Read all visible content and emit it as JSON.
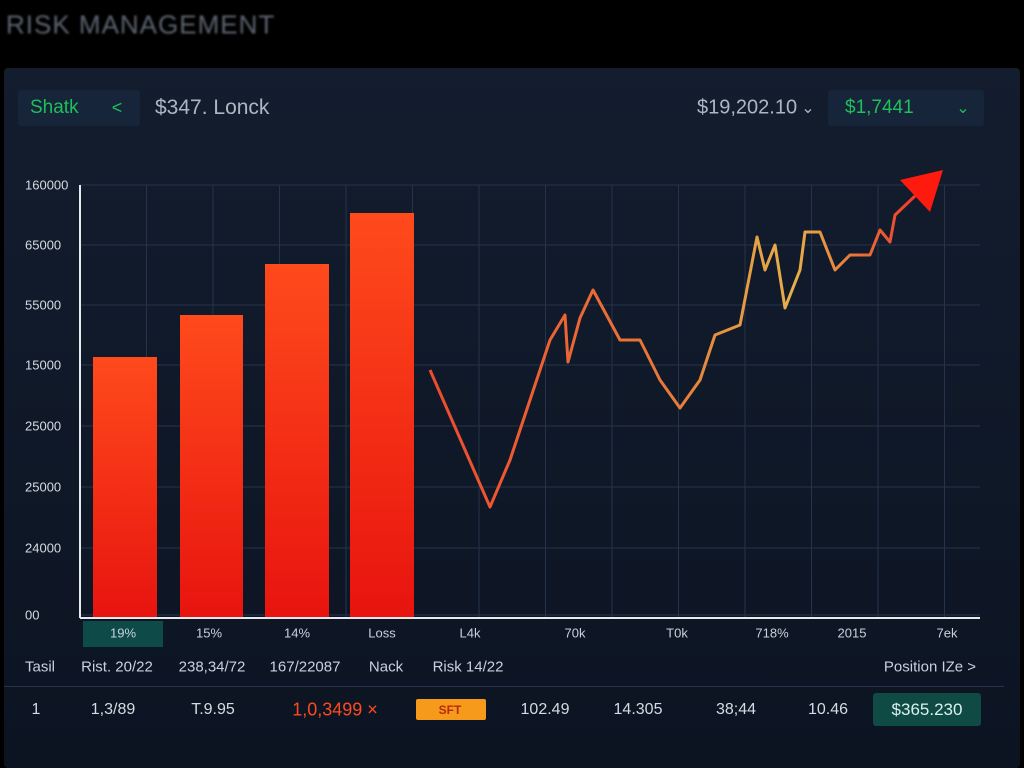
{
  "header": {
    "title": "RISK MANAGEMENT",
    "tab": "Shatk",
    "tab_icon": "<",
    "ticker": "$347. Lonck",
    "balance": "$19,202.10",
    "balance_icon": "⌄",
    "change": "$1,7441",
    "change_icon": "⌄"
  },
  "chart": {
    "y_labels": [
      "160000",
      "65000",
      "55000",
      "15000",
      "25000",
      "25000",
      "24000",
      "00"
    ],
    "x_labels": [
      "19%",
      "15%",
      "14%",
      "Loss",
      "L4k",
      "70k",
      "T0k",
      "718%",
      "2015",
      "7ek"
    ]
  },
  "table": {
    "columns": [
      "Tasil",
      "Rist. 20/22",
      "238,34/72",
      "167/22087",
      "Nack",
      "Risk 14/22"
    ],
    "action": "Position IZe >",
    "row": [
      "1",
      "1,3/89",
      "T.9.95",
      "1,0,3499 ×",
      "SFT",
      "102.49",
      "14.305",
      "38;44",
      "10.46",
      "$365.230"
    ]
  }
}
